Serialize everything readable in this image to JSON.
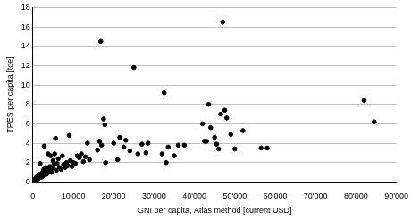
{
  "chart_data": {
    "type": "scatter",
    "x_label": "GNI per capita, Atlas method [current USD]",
    "y_label": "TPES per capita [toe]",
    "color": "#000000",
    "marker": "circle",
    "grid": true,
    "x": [
      300,
      500,
      700,
      900,
      1000,
      1200,
      1300,
      1500,
      1600,
      1800,
      2000,
      2200,
      2400,
      2500,
      2700,
      2800,
      3000,
      3200,
      3400,
      3600,
      3800,
      4000,
      4200,
      4400,
      4600,
      4800,
      5000,
      5200,
      5400,
      5600,
      5800,
      6000,
      6300,
      6600,
      7000,
      7300,
      7600,
      8000,
      8300,
      8700,
      9000,
      9300,
      9700,
      10000,
      10500,
      11000,
      11500,
      12000,
      12500,
      13000,
      13500,
      14000,
      16000,
      16500,
      16800,
      17000,
      17500,
      17800,
      18000,
      20000,
      21000,
      21500,
      22500,
      23000,
      24000,
      25000,
      26000,
      27000,
      28000,
      28500,
      32000,
      32500,
      33000,
      33500,
      35000,
      36000,
      37500,
      42000,
      42500,
      43000,
      43500,
      44000,
      45000,
      45500,
      46000,
      46500,
      47000,
      47500,
      48000,
      49000,
      50000,
      52000,
      56500,
      58000,
      82000,
      84500
    ],
    "values": [
      0.1,
      0.3,
      0.2,
      0.5,
      0.4,
      0.6,
      0.3,
      0.8,
      0.5,
      1.9,
      0.7,
      0.5,
      1.0,
      0.6,
      1.3,
      3.7,
      0.9,
      1.5,
      0.8,
      1.2,
      2.9,
      1.1,
      1.6,
      2.7,
      1.0,
      1.4,
      2.2,
      1.8,
      2.9,
      4.5,
      1.2,
      1.9,
      2.4,
      1.5,
      1.3,
      2.7,
      1.8,
      1.5,
      2.0,
      1.7,
      4.8,
      2.2,
      1.6,
      2.0,
      1.9,
      2.7,
      2.5,
      2.9,
      2.1,
      2.6,
      4.0,
      2.3,
      3.3,
      4.2,
      14.5,
      3.8,
      6.5,
      5.9,
      2.0,
      4.0,
      2.3,
      4.6,
      3.6,
      4.3,
      3.2,
      11.8,
      2.9,
      3.9,
      3.0,
      4.0,
      2.9,
      9.2,
      2.0,
      3.6,
      2.7,
      3.8,
      3.8,
      6.0,
      4.2,
      4.2,
      8.0,
      5.6,
      4.6,
      3.9,
      3.4,
      7.0,
      16.5,
      7.4,
      6.6,
      4.9,
      3.4,
      5.3,
      3.5,
      3.5,
      8.4,
      6.2
    ],
    "xlim": [
      0,
      90000
    ],
    "xticks": [
      0,
      {
        "value": 10000,
        "label": "10'000"
      },
      {
        "value": 20000,
        "label": "20'000"
      },
      {
        "value": 30000,
        "label": "30'000"
      },
      {
        "value": 40000,
        "label": "40'000"
      },
      {
        "value": 50000,
        "label": "50'000"
      },
      {
        "value": 60000,
        "label": "60'000"
      },
      {
        "value": 70000,
        "label": "70'000"
      },
      {
        "value": 80000,
        "label": "80'000"
      },
      {
        "value": 90000,
        "label": "90'000"
      }
    ],
    "ylim": [
      0,
      18
    ],
    "yticks": [
      0,
      2,
      4,
      6,
      8,
      10,
      12,
      14,
      16,
      18
    ]
  }
}
